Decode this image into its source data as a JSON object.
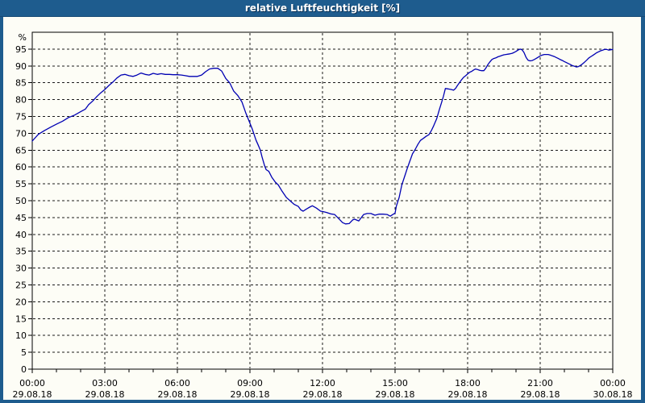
{
  "window": {
    "title": "relative Luftfeuchtigkeit [%]"
  },
  "colors": {
    "frame": "#1e5c8e",
    "title_text": "#ffffff",
    "title_shadow": "#0a2e50",
    "content_bg": "#fdfdf6",
    "grid": "#1a1a1a",
    "axis": "#000000",
    "label": "#000000",
    "line": "#0000b3"
  },
  "chart_data": {
    "type": "line",
    "title": "relative Luftfeuchtigkeit [%]",
    "ylabel": "%",
    "ylim": [
      0,
      100
    ],
    "y_tick_step": 5,
    "y_tick_labels": [
      "0",
      "5",
      "10",
      "15",
      "20",
      "25",
      "30",
      "35",
      "40",
      "45",
      "50",
      "55",
      "60",
      "65",
      "70",
      "75",
      "80",
      "85",
      "90",
      "95"
    ],
    "x_range_hours": [
      0,
      24
    ],
    "x_major_tick_hours": 3,
    "x_minor_tick_hours": 1,
    "x_tick_labels": [
      {
        "time": "00:00",
        "date": "29.08.18"
      },
      {
        "time": "03:00",
        "date": "29.08.18"
      },
      {
        "time": "06:00",
        "date": "29.08.18"
      },
      {
        "time": "09:00",
        "date": "29.08.18"
      },
      {
        "time": "12:00",
        "date": "29.08.18"
      },
      {
        "time": "15:00",
        "date": "29.08.18"
      },
      {
        "time": "18:00",
        "date": "29.08.18"
      },
      {
        "time": "21:00",
        "date": "29.08.18"
      },
      {
        "time": "00:00",
        "date": "30.08.18"
      }
    ],
    "grid": "on",
    "legend": "none",
    "series": [
      {
        "name": "relative Luftfeuchtigkeit [%]",
        "points": [
          [
            0,
            67.7
          ],
          [
            0.25,
            69.7
          ],
          [
            0.5,
            70.8
          ],
          [
            0.75,
            71.8
          ],
          [
            1,
            72.7
          ],
          [
            1.25,
            73.6
          ],
          [
            1.5,
            74.7
          ],
          [
            1.75,
            75.4
          ],
          [
            2,
            76.4
          ],
          [
            2.2,
            77.2
          ],
          [
            2.33,
            78.5
          ],
          [
            2.5,
            79.6
          ],
          [
            2.67,
            80.9
          ],
          [
            2.83,
            82
          ],
          [
            3,
            83
          ],
          [
            3.17,
            84.2
          ],
          [
            3.33,
            85.2
          ],
          [
            3.5,
            86.4
          ],
          [
            3.67,
            87.3
          ],
          [
            3.83,
            87.5
          ],
          [
            4,
            87.1
          ],
          [
            4.17,
            86.9
          ],
          [
            4.33,
            87.3
          ],
          [
            4.5,
            87.9
          ],
          [
            4.67,
            87.5
          ],
          [
            4.83,
            87.3
          ],
          [
            5,
            87.8
          ],
          [
            5.17,
            87.5
          ],
          [
            5.33,
            87.7
          ],
          [
            5.5,
            87.5
          ],
          [
            5.67,
            87.5
          ],
          [
            5.83,
            87.4
          ],
          [
            6,
            87.4
          ],
          [
            6.17,
            87.3
          ],
          [
            6.33,
            87.1
          ],
          [
            6.5,
            86.9
          ],
          [
            6.67,
            86.9
          ],
          [
            6.83,
            86.9
          ],
          [
            7,
            87.3
          ],
          [
            7.17,
            88.3
          ],
          [
            7.33,
            89.1
          ],
          [
            7.5,
            89.3
          ],
          [
            7.67,
            89.3
          ],
          [
            7.83,
            88.5
          ],
          [
            8,
            86.3
          ],
          [
            8.17,
            84.9
          ],
          [
            8.33,
            82.5
          ],
          [
            8.5,
            81.2
          ],
          [
            8.67,
            79.3
          ],
          [
            8.83,
            76
          ],
          [
            9,
            73
          ],
          [
            9.1,
            71.2
          ],
          [
            9.25,
            68
          ],
          [
            9.33,
            66.7
          ],
          [
            9.43,
            65
          ],
          [
            9.5,
            63
          ],
          [
            9.6,
            60.5
          ],
          [
            9.67,
            59.2
          ],
          [
            9.78,
            58.7
          ],
          [
            9.9,
            57
          ],
          [
            10.05,
            55.5
          ],
          [
            10.17,
            54.7
          ],
          [
            10.33,
            52.8
          ],
          [
            10.5,
            51
          ],
          [
            10.67,
            49.9
          ],
          [
            10.83,
            48.9
          ],
          [
            11,
            48.3
          ],
          [
            11.1,
            47.3
          ],
          [
            11.2,
            46.9
          ],
          [
            11.33,
            47.5
          ],
          [
            11.5,
            48.2
          ],
          [
            11.58,
            48.5
          ],
          [
            11.75,
            47.8
          ],
          [
            11.92,
            46.9
          ],
          [
            12,
            46.8
          ],
          [
            12.17,
            46.5
          ],
          [
            12.33,
            46.1
          ],
          [
            12.5,
            45.9
          ],
          [
            12.67,
            44.7
          ],
          [
            12.83,
            43.5
          ],
          [
            12.95,
            43.1
          ],
          [
            13.1,
            43.2
          ],
          [
            13.25,
            44.3
          ],
          [
            13.33,
            44.5
          ],
          [
            13.5,
            44
          ],
          [
            13.7,
            45.9
          ],
          [
            13.85,
            46.2
          ],
          [
            14,
            46.2
          ],
          [
            14.17,
            45.7
          ],
          [
            14.33,
            46
          ],
          [
            14.5,
            46
          ],
          [
            14.67,
            45.9
          ],
          [
            14.8,
            45.4
          ],
          [
            14.93,
            46
          ],
          [
            15,
            46.3
          ],
          [
            15.05,
            48.3
          ],
          [
            15.17,
            51
          ],
          [
            15.28,
            54.7
          ],
          [
            15.4,
            57.3
          ],
          [
            15.5,
            59.5
          ],
          [
            15.6,
            61.5
          ],
          [
            15.72,
            63.9
          ],
          [
            15.83,
            65.2
          ],
          [
            15.95,
            66.8
          ],
          [
            16.05,
            67.9
          ],
          [
            16.17,
            68.5
          ],
          [
            16.28,
            69.1
          ],
          [
            16.4,
            69.6
          ],
          [
            16.5,
            70.8
          ],
          [
            16.6,
            72.3
          ],
          [
            16.72,
            74.3
          ],
          [
            16.83,
            77
          ],
          [
            16.92,
            79.1
          ],
          [
            17,
            81
          ],
          [
            17.08,
            83.3
          ],
          [
            17.17,
            83.2
          ],
          [
            17.25,
            83.1
          ],
          [
            17.33,
            83
          ],
          [
            17.42,
            82.8
          ],
          [
            17.5,
            83.3
          ],
          [
            17.58,
            84.2
          ],
          [
            17.67,
            85.1
          ],
          [
            17.75,
            85.9
          ],
          [
            17.83,
            86.6
          ],
          [
            17.92,
            87.1
          ],
          [
            18,
            87.6
          ],
          [
            18.08,
            88.1
          ],
          [
            18.17,
            88.4
          ],
          [
            18.25,
            88.8
          ],
          [
            18.33,
            89.1
          ],
          [
            18.42,
            88.9
          ],
          [
            18.5,
            88.7
          ],
          [
            18.58,
            88.6
          ],
          [
            18.67,
            88.6
          ],
          [
            18.75,
            89.3
          ],
          [
            18.83,
            90.3
          ],
          [
            18.92,
            91.2
          ],
          [
            19,
            91.9
          ],
          [
            19.08,
            92.2
          ],
          [
            19.17,
            92.4
          ],
          [
            19.25,
            92.7
          ],
          [
            19.33,
            92.9
          ],
          [
            19.42,
            93.1
          ],
          [
            19.5,
            93.3
          ],
          [
            19.58,
            93.4
          ],
          [
            19.67,
            93.5
          ],
          [
            19.75,
            93.6
          ],
          [
            19.83,
            93.7
          ],
          [
            19.92,
            94
          ],
          [
            20,
            94.3
          ],
          [
            20.08,
            94.7
          ],
          [
            20.17,
            95
          ],
          [
            20.25,
            94.8
          ],
          [
            20.33,
            94
          ],
          [
            20.42,
            92.5
          ],
          [
            20.5,
            91.7
          ],
          [
            20.58,
            91.5
          ],
          [
            20.67,
            91.6
          ],
          [
            20.75,
            91.9
          ],
          [
            20.83,
            92.2
          ],
          [
            20.92,
            92.6
          ],
          [
            21,
            93
          ],
          [
            21.08,
            93.2
          ],
          [
            21.17,
            93.4
          ],
          [
            21.25,
            93.4
          ],
          [
            21.33,
            93.4
          ],
          [
            21.42,
            93.2
          ],
          [
            21.5,
            93
          ],
          [
            21.58,
            92.8
          ],
          [
            21.67,
            92.5
          ],
          [
            21.75,
            92.2
          ],
          [
            21.83,
            91.9
          ],
          [
            21.92,
            91.6
          ],
          [
            22,
            91.3
          ],
          [
            22.08,
            91
          ],
          [
            22.17,
            90.7
          ],
          [
            22.25,
            90.4
          ],
          [
            22.33,
            90.1
          ],
          [
            22.42,
            89.9
          ],
          [
            22.5,
            89.7
          ],
          [
            22.58,
            89.8
          ],
          [
            22.67,
            90.2
          ],
          [
            22.75,
            90.6
          ],
          [
            22.83,
            91.1
          ],
          [
            22.92,
            91.7
          ],
          [
            23,
            92.3
          ],
          [
            23.08,
            92.7
          ],
          [
            23.17,
            93.1
          ],
          [
            23.25,
            93.5
          ],
          [
            23.33,
            93.9
          ],
          [
            23.42,
            94.2
          ],
          [
            23.5,
            94.5
          ],
          [
            23.58,
            94.7
          ],
          [
            23.67,
            94.9
          ],
          [
            23.75,
            94.9
          ],
          [
            23.83,
            94.7
          ],
          [
            23.92,
            94.8
          ],
          [
            24,
            94.9
          ]
        ]
      }
    ]
  }
}
